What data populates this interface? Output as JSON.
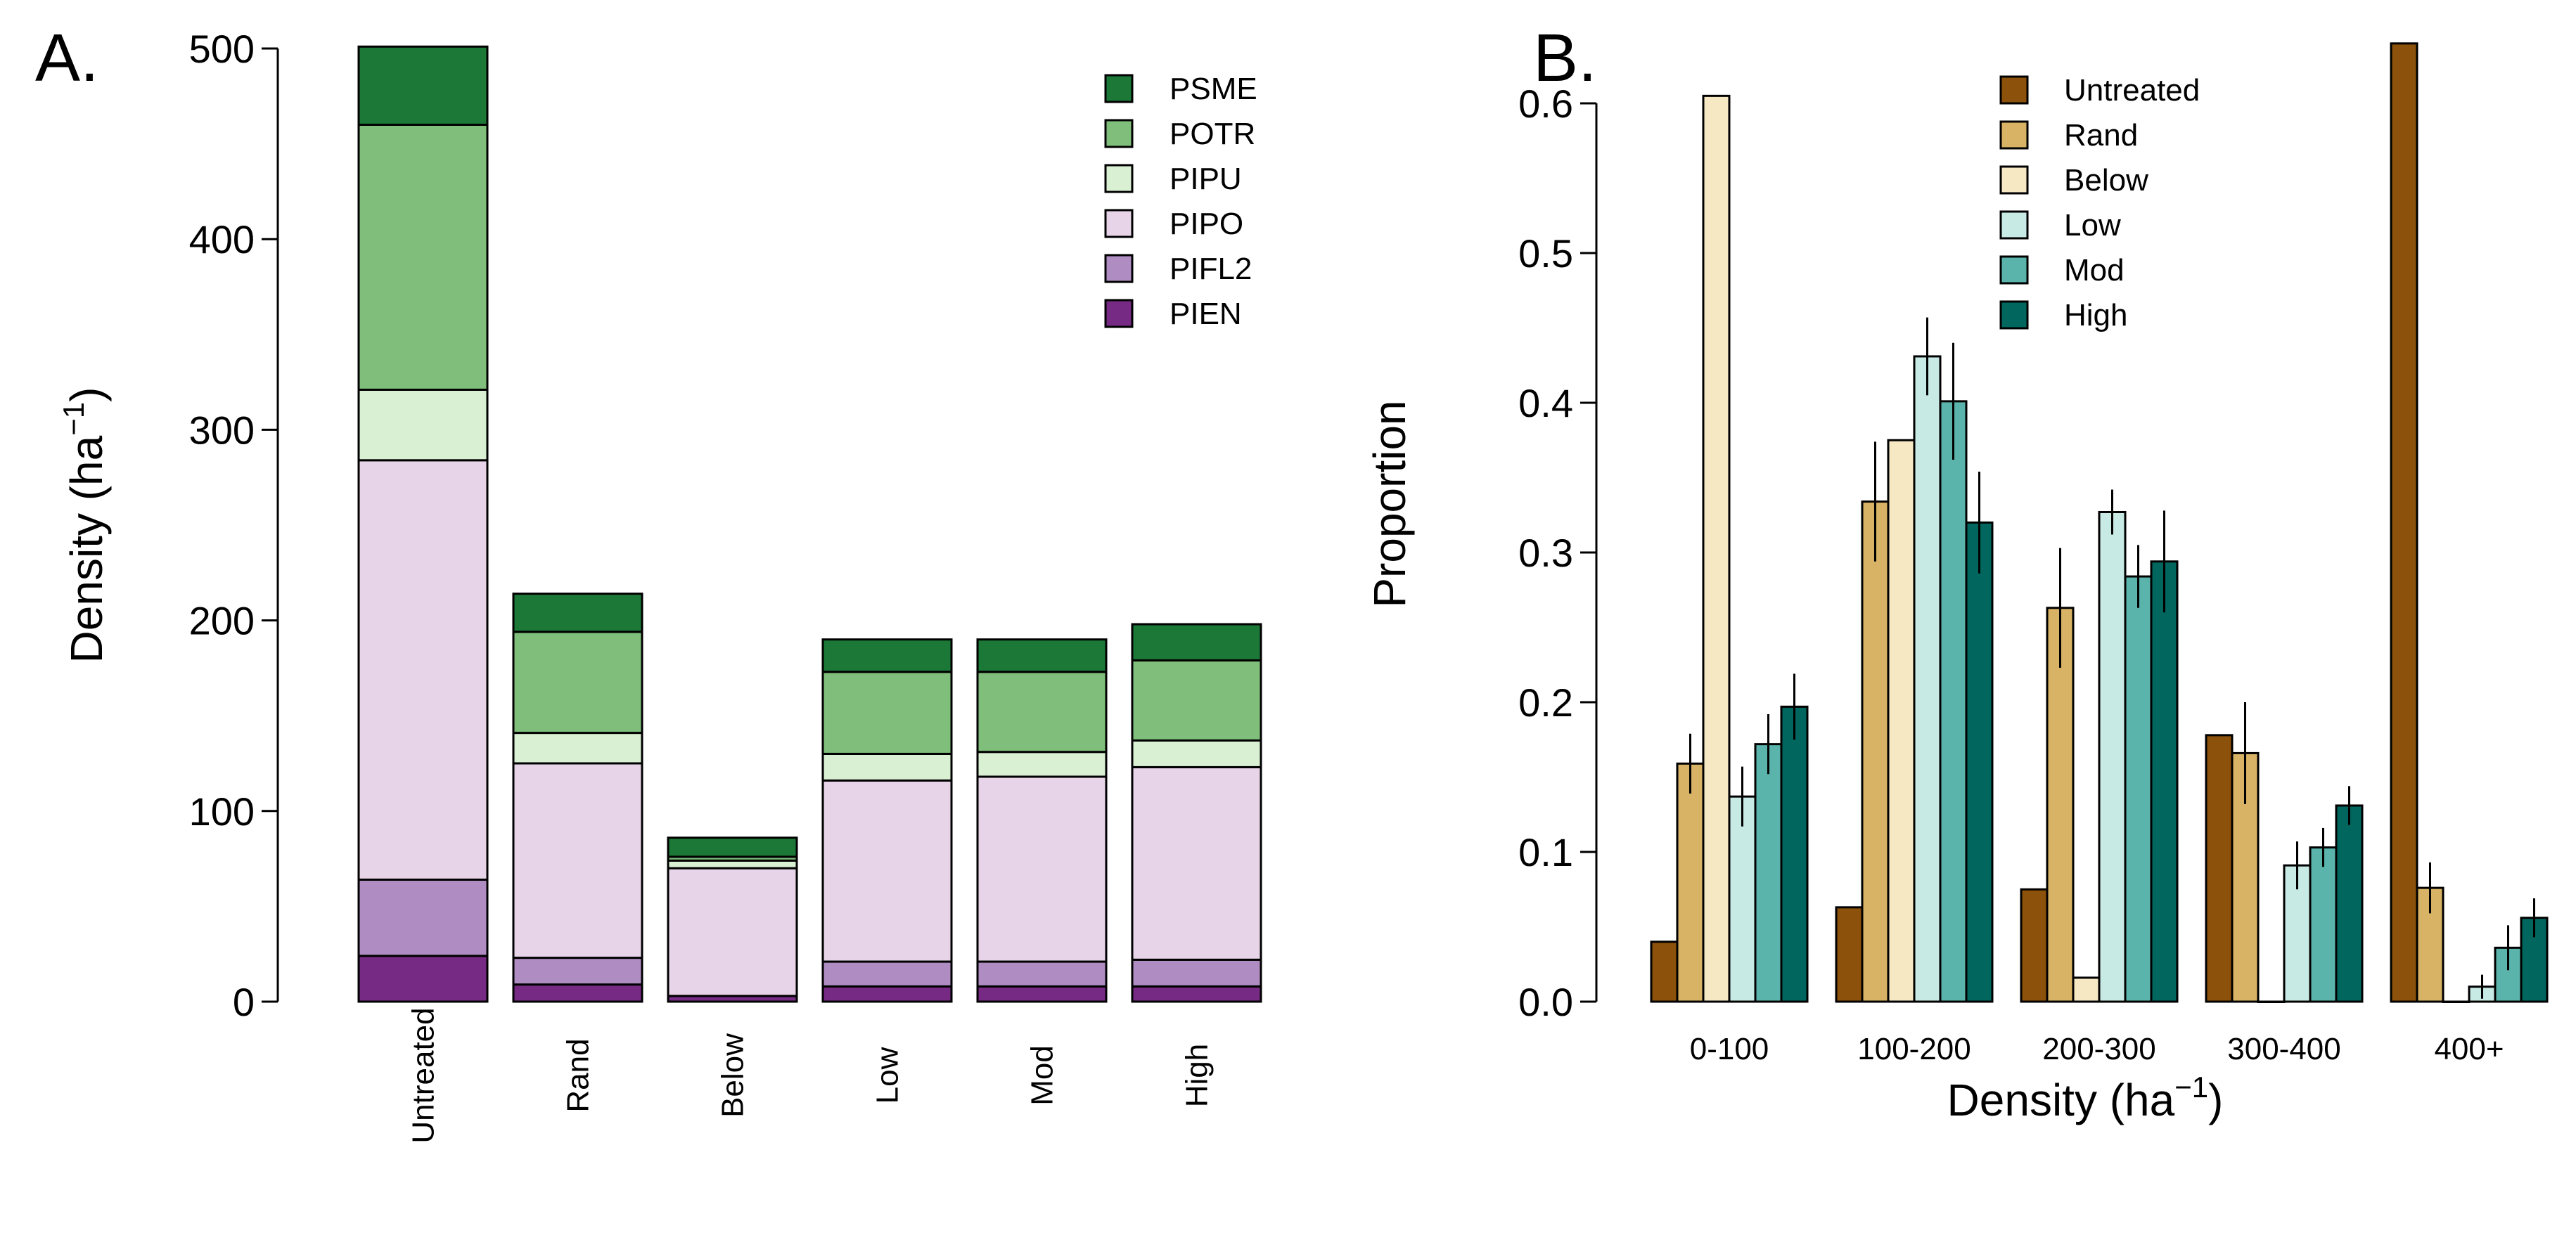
{
  "chart_data": [
    {
      "panel": "A.",
      "type": "bar",
      "stacked": true,
      "title": "",
      "xlabel": "",
      "ylabel": "Density (ha",
      "ylabel_sup": "−1",
      "ylabel_close": ")",
      "ylim": [
        0,
        500
      ],
      "yticks": [
        "0",
        "100",
        "200",
        "300",
        "400",
        "500"
      ],
      "legend_position": "top-right",
      "categories": [
        "Untreated",
        "Rand",
        "Below",
        "Low",
        "Mod",
        "High"
      ],
      "series": [
        {
          "name": "PIEN",
          "color": "#762a83",
          "values": [
            24,
            9,
            3,
            8,
            8,
            8
          ]
        },
        {
          "name": "PIFL2",
          "color": "#af8dc3",
          "values": [
            40,
            14,
            0,
            13,
            13,
            14
          ]
        },
        {
          "name": "PIPO",
          "color": "#e7d4e8",
          "values": [
            220,
            102,
            67,
            95,
            97,
            101
          ]
        },
        {
          "name": "PIPU",
          "color": "#d9f0d3",
          "values": [
            37,
            16,
            4,
            14,
            13,
            14
          ]
        },
        {
          "name": "POTR",
          "color": "#7fbf7b",
          "values": [
            139,
            53,
            2,
            43,
            42,
            42
          ]
        },
        {
          "name": "PSME",
          "color": "#1b7837",
          "values": [
            41,
            20,
            10,
            17,
            17,
            19
          ]
        }
      ]
    },
    {
      "panel": "B.",
      "type": "bar",
      "stacked": false,
      "title": "",
      "xlabel": "Density (ha",
      "xlabel_sup": "−1",
      "xlabel_close": ")",
      "ylabel": "Proportion",
      "ylim": [
        0,
        0.6
      ],
      "yticks": [
        "0.0",
        "0.1",
        "0.2",
        "0.3",
        "0.4",
        "0.5",
        "0.6"
      ],
      "legend_position": "top-center",
      "categories": [
        "0-100",
        "100-200",
        "200-300",
        "300-400",
        "400+"
      ],
      "series": [
        {
          "name": "Untreated",
          "color": "#8c510a",
          "values": [
            0.04,
            0.063,
            0.075,
            0.178,
            0.64
          ],
          "errors": [
            null,
            null,
            null,
            null,
            null
          ]
        },
        {
          "name": "Rand",
          "color": "#d8b365",
          "values": [
            0.159,
            0.334,
            0.263,
            0.166,
            0.076
          ],
          "errors": [
            0.02,
            0.04,
            0.04,
            0.034,
            0.017
          ]
        },
        {
          "name": "Below",
          "color": "#f6e8c3",
          "values": [
            0.605,
            0.375,
            0.016,
            0.0,
            0.0
          ],
          "errors": [
            null,
            null,
            null,
            null,
            null
          ]
        },
        {
          "name": "Low",
          "color": "#c7eae5",
          "values": [
            0.137,
            0.431,
            0.327,
            0.091,
            0.01
          ],
          "errors": [
            0.02,
            0.026,
            0.015,
            0.016,
            0.008
          ]
        },
        {
          "name": "Mod",
          "color": "#5ab4ac",
          "values": [
            0.172,
            0.401,
            0.284,
            0.103,
            0.036
          ],
          "errors": [
            0.02,
            0.039,
            0.021,
            0.013,
            0.015
          ]
        },
        {
          "name": "High",
          "color": "#01665e",
          "values": [
            0.197,
            0.32,
            0.294,
            0.131,
            0.056
          ],
          "errors": [
            0.022,
            0.034,
            0.034,
            0.013,
            0.013
          ]
        }
      ]
    }
  ]
}
